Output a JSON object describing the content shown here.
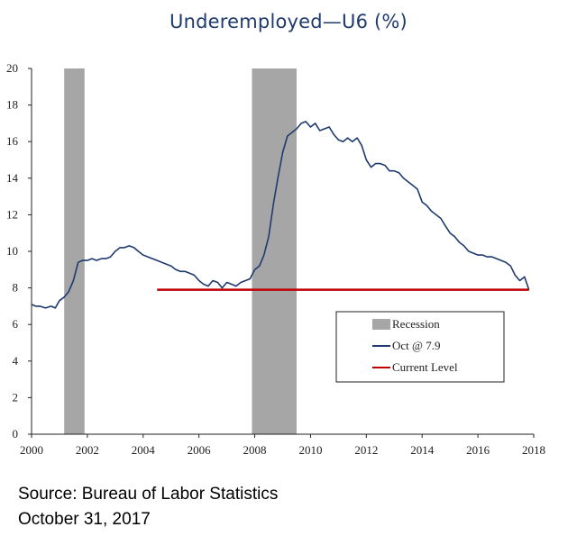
{
  "chart_data": {
    "type": "line",
    "title": "Underemployed—U6 (%)",
    "xlabel": "",
    "ylabel": "",
    "xlim": [
      2000,
      2018
    ],
    "ylim": [
      0,
      20
    ],
    "x_ticks": [
      "2000",
      "2002",
      "2004",
      "2006",
      "2008",
      "2010",
      "2012",
      "2014",
      "2016",
      "2018"
    ],
    "y_ticks": [
      "0",
      "2",
      "4",
      "6",
      "8",
      "10",
      "12",
      "14",
      "16",
      "18",
      "20"
    ],
    "grid": false,
    "legend_position": "lower-right",
    "recessions": [
      {
        "start": 2001.17,
        "end": 2001.9
      },
      {
        "start": 2007.9,
        "end": 2009.5
      }
    ],
    "series": [
      {
        "name": "Oct @ 7.9",
        "color": "#1f3a6e",
        "x": [
          2000.0,
          2000.15,
          2000.3,
          2000.5,
          2000.7,
          2000.85,
          2001.0,
          2001.17,
          2001.33,
          2001.5,
          2001.67,
          2001.83,
          2002.0,
          2002.17,
          2002.33,
          2002.5,
          2002.67,
          2002.83,
          2003.0,
          2003.17,
          2003.33,
          2003.5,
          2003.67,
          2003.83,
          2004.0,
          2004.17,
          2004.33,
          2004.5,
          2004.67,
          2004.83,
          2005.0,
          2005.17,
          2005.33,
          2005.5,
          2005.67,
          2005.83,
          2006.0,
          2006.17,
          2006.33,
          2006.5,
          2006.67,
          2006.83,
          2007.0,
          2007.17,
          2007.33,
          2007.5,
          2007.67,
          2007.83,
          2008.0,
          2008.17,
          2008.33,
          2008.5,
          2008.67,
          2008.83,
          2009.0,
          2009.17,
          2009.33,
          2009.5,
          2009.67,
          2009.83,
          2010.0,
          2010.17,
          2010.33,
          2010.5,
          2010.67,
          2010.83,
          2011.0,
          2011.17,
          2011.33,
          2011.5,
          2011.67,
          2011.83,
          2012.0,
          2012.17,
          2012.33,
          2012.5,
          2012.67,
          2012.83,
          2013.0,
          2013.17,
          2013.33,
          2013.5,
          2013.67,
          2013.83,
          2014.0,
          2014.17,
          2014.33,
          2014.5,
          2014.67,
          2014.83,
          2015.0,
          2015.17,
          2015.33,
          2015.5,
          2015.67,
          2015.83,
          2016.0,
          2016.17,
          2016.33,
          2016.5,
          2016.67,
          2016.83,
          2017.0,
          2017.17,
          2017.33,
          2017.5,
          2017.67,
          2017.83
        ],
        "values": [
          7.1,
          7.0,
          7.0,
          6.9,
          7.0,
          6.9,
          7.3,
          7.5,
          7.8,
          8.4,
          9.4,
          9.5,
          9.5,
          9.6,
          9.5,
          9.6,
          9.6,
          9.7,
          10.0,
          10.2,
          10.2,
          10.3,
          10.2,
          10.0,
          9.8,
          9.7,
          9.6,
          9.5,
          9.4,
          9.3,
          9.2,
          9.0,
          8.9,
          8.9,
          8.8,
          8.7,
          8.4,
          8.2,
          8.1,
          8.4,
          8.3,
          8.0,
          8.3,
          8.2,
          8.1,
          8.3,
          8.4,
          8.5,
          9.0,
          9.2,
          9.8,
          10.8,
          12.6,
          14.0,
          15.4,
          16.3,
          16.5,
          16.7,
          17.0,
          17.1,
          16.8,
          17.0,
          16.6,
          16.7,
          16.8,
          16.4,
          16.1,
          16.0,
          16.2,
          16.0,
          16.2,
          15.8,
          15.0,
          14.6,
          14.8,
          14.8,
          14.7,
          14.4,
          14.4,
          14.3,
          14.0,
          13.8,
          13.6,
          13.4,
          12.7,
          12.5,
          12.2,
          12.0,
          11.8,
          11.4,
          11.0,
          10.8,
          10.5,
          10.3,
          10.0,
          9.9,
          9.8,
          9.8,
          9.7,
          9.7,
          9.6,
          9.5,
          9.4,
          9.2,
          8.7,
          8.4,
          8.6,
          7.9
        ]
      }
    ],
    "current_level": {
      "name": "Current Level",
      "value": 7.9,
      "start": 2004.5,
      "end": 2017.83,
      "color": "#c00000"
    },
    "legend": [
      {
        "label": "Recession",
        "kind": "patch",
        "color": "#a6a6a6"
      },
      {
        "label": "Oct @ 7.9",
        "kind": "line",
        "color": "#1f3a6e"
      },
      {
        "label": "Current Level",
        "kind": "line",
        "color": "#c00000"
      }
    ]
  },
  "source": {
    "line1": "Source: Bureau of Labor Statistics",
    "line2": "October 31, 2017"
  }
}
